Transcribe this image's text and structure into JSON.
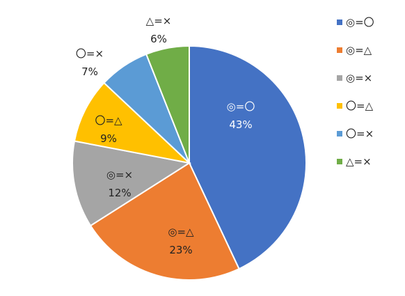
{
  "chart_data": {
    "type": "pie",
    "title": "",
    "legend_position": "right",
    "slices": [
      {
        "label": "◎=〇",
        "value": 43,
        "display": "43%",
        "color": "#4472C4"
      },
      {
        "label": "◎=△",
        "value": 23,
        "display": "23%",
        "color": "#ED7D31"
      },
      {
        "label": "◎=×",
        "value": 12,
        "display": "12%",
        "color": "#A5A5A5"
      },
      {
        "label": "〇=△",
        "value": 9,
        "display": "9%",
        "color": "#FFC000"
      },
      {
        "label": "〇=×",
        "value": 7,
        "display": "7%",
        "color": "#5B9BD5"
      },
      {
        "label": "△=×",
        "value": 6,
        "display": "6%",
        "color": "#70AD47"
      }
    ]
  }
}
